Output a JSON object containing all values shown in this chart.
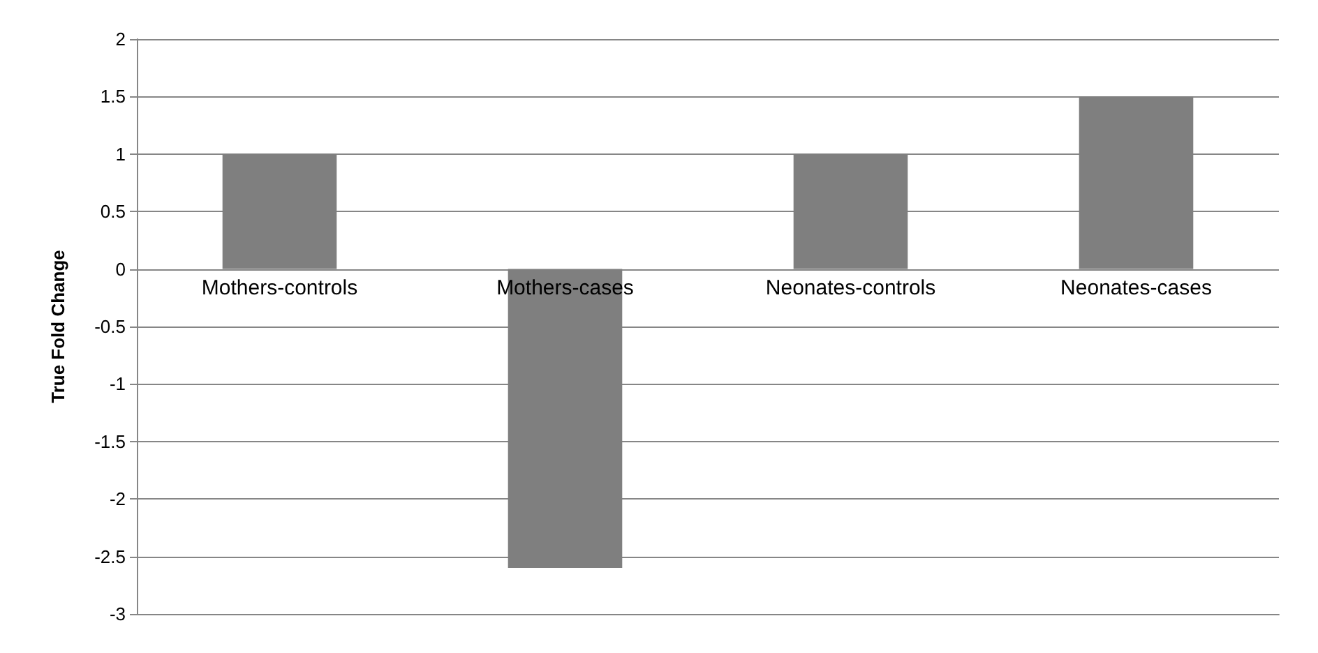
{
  "chart_data": {
    "type": "bar",
    "ylabel": "True Fold Change",
    "categories": [
      "Mothers-controls",
      "Mothers-cases",
      "Neonates-controls",
      "Neonates-cases"
    ],
    "values": [
      1,
      -2.6,
      1,
      1.5
    ],
    "color": "#7f7f7f",
    "ylim": [
      -3,
      2
    ],
    "yticks": [
      -3,
      -2.5,
      -2,
      -1.5,
      -1,
      -0.5,
      0,
      0.5,
      1,
      1.5,
      2
    ],
    "grid": "y"
  }
}
